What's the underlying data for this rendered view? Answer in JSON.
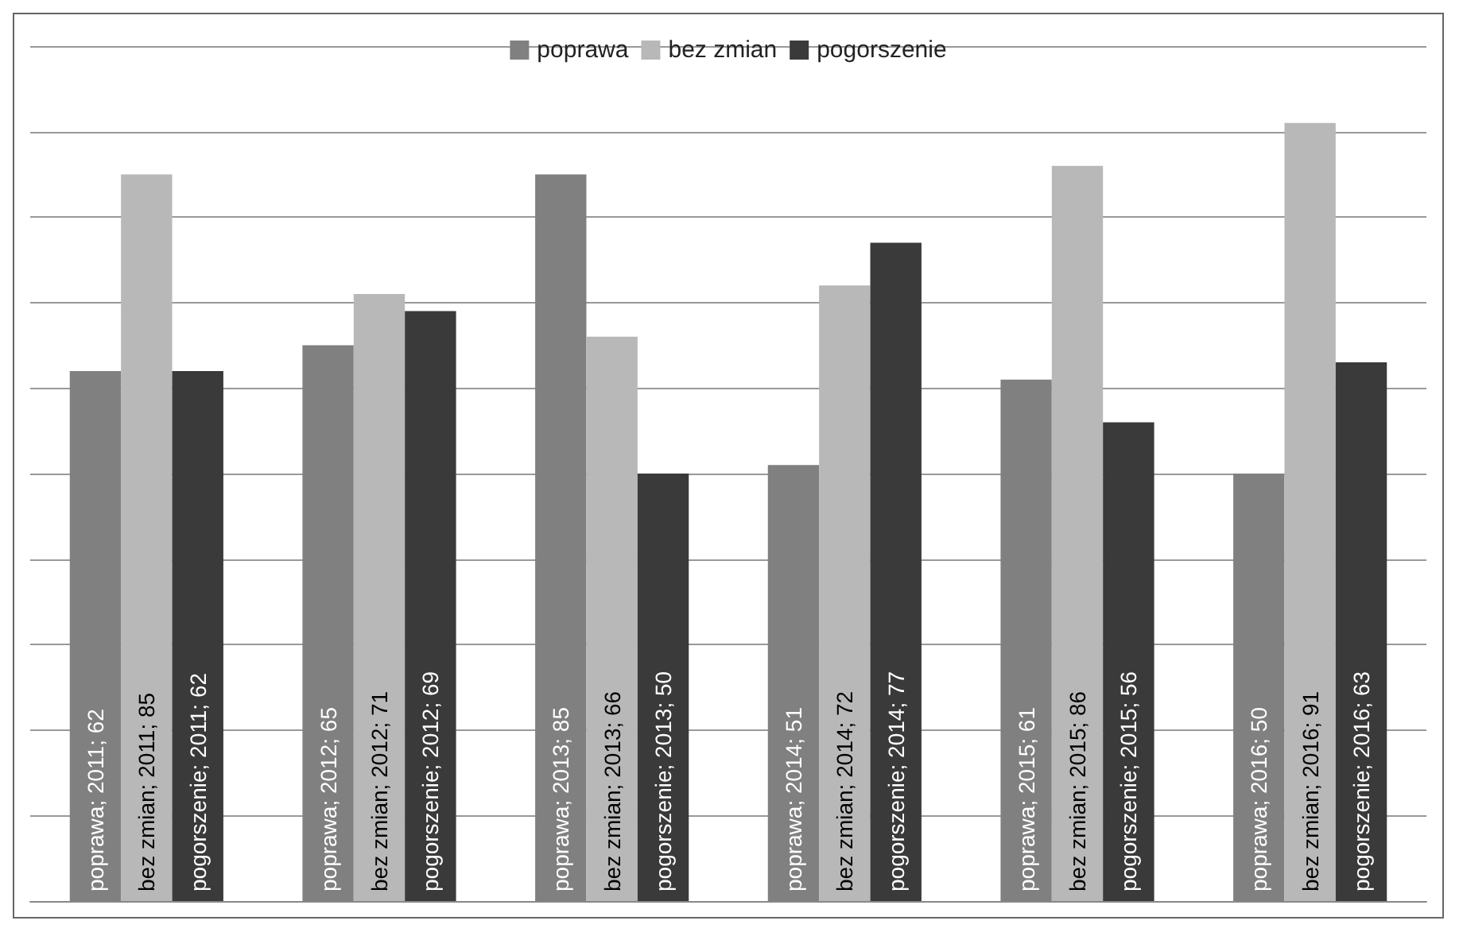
{
  "chart_data": {
    "type": "bar",
    "categories": [
      null,
      null,
      null,
      null,
      null,
      null
    ],
    "series": [
      {
        "name": "poprawa",
        "color": "#808080",
        "values": [
          62,
          65,
          85,
          51,
          61,
          50
        ],
        "value_labels": [
          "poprawa; 2011; 62",
          "poprawa; 2012; 65",
          "poprawa; 2013; 85",
          "poprawa; 2014; 51",
          "poprawa; 2015; 61",
          "poprawa; 2016; 50"
        ]
      },
      {
        "name": "bez zmian",
        "color": "#b8b8b8",
        "values": [
          85,
          71,
          66,
          72,
          86,
          91
        ],
        "value_labels": [
          "bez zmian; 2011; 85",
          "bez zmian; 2012; 71",
          "bez zmian; 2013; 66",
          "bez zmian; 2014; 72",
          "bez zmian; 2015; 86",
          "bez zmian; 2016; 91"
        ]
      },
      {
        "name": "pogorszenie",
        "color": "#3a3a3a",
        "values": [
          62,
          69,
          50,
          77,
          56,
          63
        ],
        "value_labels": [
          "pogorszenie; 2011; 62",
          "pogorszenie; 2012; 69",
          "pogorszenie; 2013; 50",
          "pogorszenie; 2014; 77",
          "pogorszenie; 2015; 56",
          "pogorszenie; 2016; 63"
        ]
      }
    ],
    "ylim": [
      0,
      100
    ],
    "yticks": [
      {
        "value": 0,
        "label": null
      },
      {
        "value": 10,
        "label": null
      },
      {
        "value": 20,
        "label": null
      },
      {
        "value": 30,
        "label": null
      },
      {
        "value": 40,
        "label": null
      },
      {
        "value": 50,
        "label": null
      },
      {
        "value": 60,
        "label": null
      },
      {
        "value": 70,
        "label": null
      },
      {
        "value": 80,
        "label": null
      },
      {
        "value": 90,
        "label": null
      },
      {
        "value": 100,
        "label": null
      }
    ],
    "grid": "y",
    "legend": "top",
    "tick_labels": false
  }
}
